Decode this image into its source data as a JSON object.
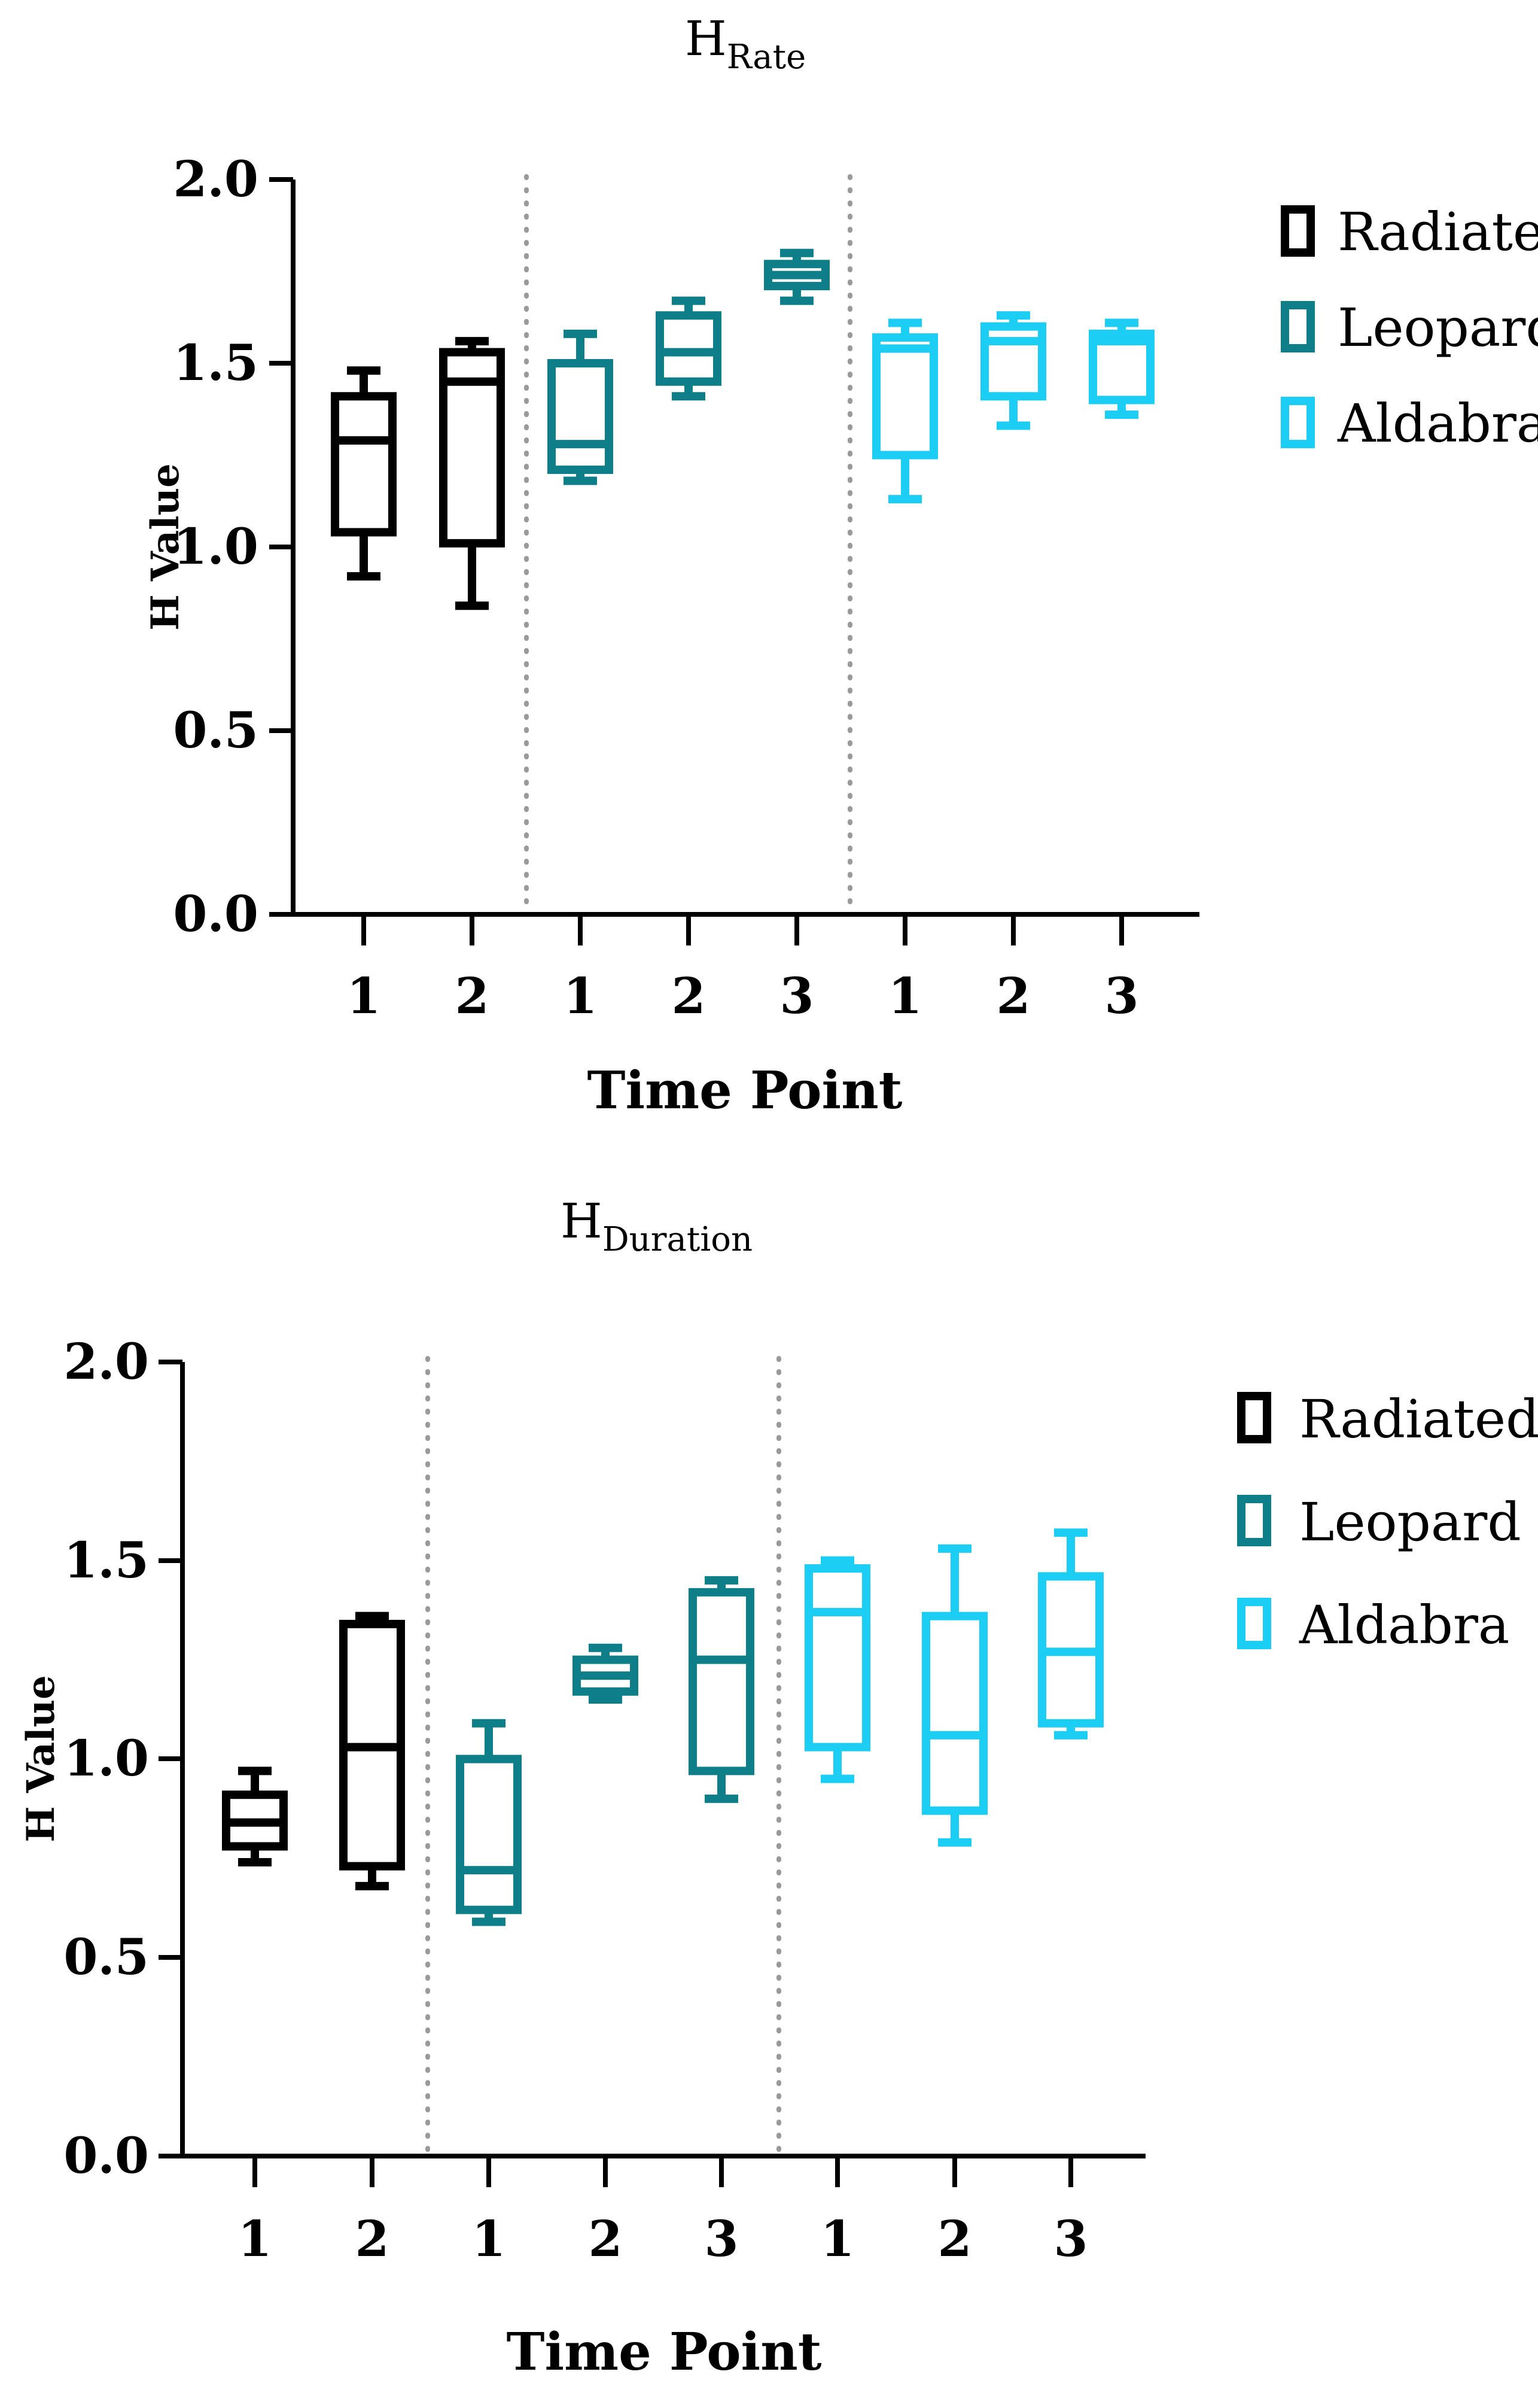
{
  "chart_data": [
    {
      "type": "box",
      "title": "H",
      "title_subscript": "Rate",
      "xlabel": "Time Point",
      "ylabel": "H Value",
      "ylim": [
        0,
        2.0
      ],
      "y_ticks": [
        "0.0",
        "0.5",
        "1.0",
        "1.5",
        "2.0"
      ],
      "legend": {
        "position": "top-right",
        "entries": [
          {
            "name": "Radiated",
            "color": "#000000"
          },
          {
            "name": "Leopard",
            "color": "#0e7f89"
          },
          {
            "name": "Aldabra",
            "color": "#1ccdf4"
          }
        ]
      },
      "groups": [
        {
          "species": "Radiated",
          "color": "#000000",
          "boxes": [
            {
              "label": "1",
              "min": 0.92,
              "q1": 1.04,
              "median": 1.29,
              "q3": 1.41,
              "max": 1.48
            },
            {
              "label": "2",
              "min": 0.84,
              "q1": 1.01,
              "median": 1.45,
              "q3": 1.53,
              "max": 1.56
            }
          ]
        },
        {
          "species": "Leopard",
          "color": "#0e7f89",
          "boxes": [
            {
              "label": "1",
              "min": 1.18,
              "q1": 1.21,
              "median": 1.28,
              "q3": 1.5,
              "max": 1.58
            },
            {
              "label": "2",
              "min": 1.41,
              "q1": 1.45,
              "median": 1.53,
              "q3": 1.63,
              "max": 1.67
            }
          ]
        },
        {
          "species": "Leopard",
          "color": "#0e7f89",
          "boxes": [
            {
              "label": "3",
              "min": 1.67,
              "q1": 1.71,
              "median": 1.74,
              "q3": 1.77,
              "max": 1.8
            }
          ]
        },
        {
          "species": "Aldabra",
          "color": "#1ccdf4",
          "boxes": [
            {
              "label": "1",
              "min": 1.13,
              "q1": 1.25,
              "median": 1.54,
              "q3": 1.57,
              "max": 1.61
            },
            {
              "label": "2",
              "min": 1.33,
              "q1": 1.41,
              "median": 1.56,
              "q3": 1.6,
              "max": 1.63
            },
            {
              "label": "3",
              "min": 1.36,
              "q1": 1.4,
              "median": 1.56,
              "q3": 1.58,
              "max": 1.61
            }
          ]
        }
      ]
    },
    {
      "type": "box",
      "title": "H",
      "title_subscript": "Duration",
      "xlabel": "Time Point",
      "ylabel": "H Value",
      "ylim": [
        0,
        2.0
      ],
      "y_ticks": [
        "0.0",
        "0.5",
        "1.0",
        "1.5",
        "2.0"
      ],
      "legend": {
        "position": "top-right",
        "entries": [
          {
            "name": "Radiated",
            "color": "#000000"
          },
          {
            "name": "Leopard",
            "color": "#0e7f89"
          },
          {
            "name": "Aldabra",
            "color": "#1ccdf4"
          }
        ]
      },
      "groups": [
        {
          "species": "Radiated",
          "color": "#000000",
          "boxes": [
            {
              "label": "1",
              "min": 0.74,
              "q1": 0.78,
              "median": 0.84,
              "q3": 0.91,
              "max": 0.97
            },
            {
              "label": "2",
              "min": 0.68,
              "q1": 0.73,
              "median": 1.03,
              "q3": 1.34,
              "max": 1.36
            }
          ]
        },
        {
          "species": "Leopard",
          "color": "#0e7f89",
          "boxes": [
            {
              "label": "1",
              "min": 0.59,
              "q1": 0.62,
              "median": 0.72,
              "q3": 1.0,
              "max": 1.09
            },
            {
              "label": "2",
              "min": 1.15,
              "q1": 1.17,
              "median": 1.21,
              "q3": 1.25,
              "max": 1.28
            }
          ]
        },
        {
          "species": "Leopard",
          "color": "#0e7f89",
          "boxes": [
            {
              "label": "3",
              "min": 0.9,
              "q1": 0.97,
              "median": 1.25,
              "q3": 1.42,
              "max": 1.45
            }
          ]
        },
        {
          "species": "Aldabra",
          "color": "#1ccdf4",
          "boxes": [
            {
              "label": "1",
              "min": 0.95,
              "q1": 1.03,
              "median": 1.37,
              "q3": 1.48,
              "max": 1.5
            },
            {
              "label": "2",
              "min": 0.79,
              "q1": 0.87,
              "median": 1.06,
              "q3": 1.36,
              "max": 1.53
            },
            {
              "label": "3",
              "min": 1.06,
              "q1": 1.09,
              "median": 1.27,
              "q3": 1.46,
              "max": 1.57
            }
          ]
        }
      ]
    }
  ]
}
